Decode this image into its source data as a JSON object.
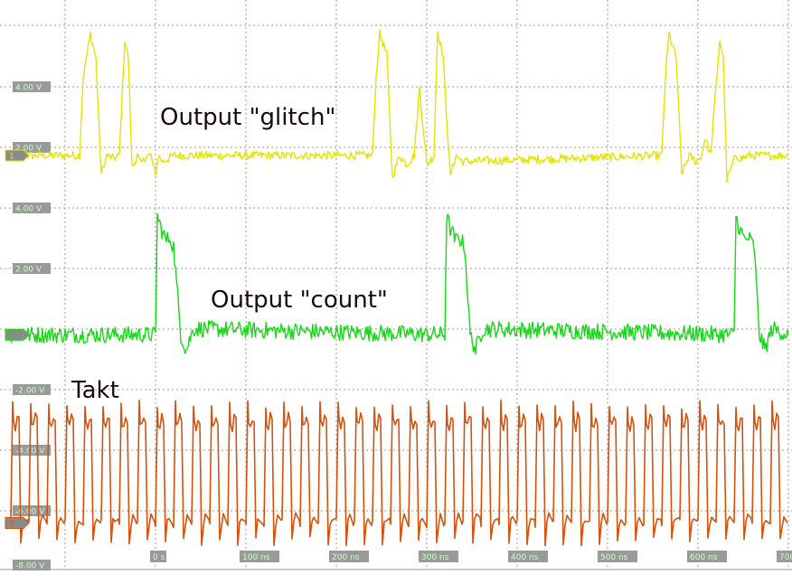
{
  "chart_data": {
    "type": "line",
    "title": "",
    "xlabel": "",
    "ylabel": "",
    "grid": true,
    "xlim": [
      -1.6,
      7.0
    ],
    "x_ticks": [
      "0 s",
      "100 ns",
      "200 ns",
      "300 ns",
      "400 ns",
      "500 ns",
      "600 ns",
      "700"
    ],
    "y_ticks": [
      "4.00 V",
      "2.00 V",
      "4.00 V",
      "2.00 V",
      "-2.00 V",
      "-4.00 V",
      "-6.00 V",
      "-8.00 V"
    ],
    "channel_markers": [
      "1",
      "2",
      "3"
    ],
    "annotations": [
      "Output \"glitch\"",
      "Output \"count\"",
      "Takt"
    ],
    "colors": {
      "glitch": "#e4e400",
      "count": "#16d816",
      "takt": "#d4520c",
      "grid": "#9a9a9a",
      "label_bg": "#9a9a9a",
      "label_text": "#c8ffc8"
    },
    "series": [
      {
        "key": "glitch",
        "baseline_v": 0.0,
        "points_x": [
          -1.6,
          -0.84,
          -0.8,
          -0.72,
          -0.66,
          -0.6,
          -0.54,
          -0.46,
          -0.4,
          -0.34,
          -0.3,
          -0.26,
          -0.2,
          -0.16,
          -0.1,
          -0.05,
          0.0,
          0.03,
          0.08,
          0.2,
          2.4,
          2.44,
          2.48,
          2.56,
          2.62,
          2.7,
          2.78,
          2.86,
          2.92,
          3.0,
          3.08,
          3.12,
          3.18,
          3.26,
          3.32,
          3.4,
          5.6,
          5.64,
          5.68,
          5.76,
          5.82,
          5.9,
          5.98,
          6.04,
          6.08,
          6.14,
          6.24,
          6.28,
          6.32,
          6.42,
          6.48,
          6.56,
          7.0
        ],
        "points_v": [
          0.0,
          0.0,
          2.6,
          4.0,
          3.2,
          -0.6,
          0.0,
          -0.1,
          0.0,
          3.8,
          3.2,
          -0.4,
          0.0,
          -0.3,
          0.0,
          0.0,
          -0.7,
          0.0,
          -0.2,
          0.0,
          0.0,
          2.6,
          4.0,
          3.3,
          -0.7,
          0.0,
          -0.3,
          0.0,
          2.2,
          -0.3,
          0.0,
          4.1,
          3.3,
          -0.7,
          0.0,
          -0.2,
          0.0,
          2.6,
          4.0,
          3.2,
          -0.6,
          0.0,
          -0.2,
          0.0,
          0.6,
          0.0,
          3.8,
          3.2,
          -0.8,
          0.0,
          -0.1,
          0.0,
          0.0
        ]
      },
      {
        "key": "count",
        "baseline_v": -5.9,
        "points_x": [
          -1.6,
          0.0,
          0.02,
          0.06,
          0.12,
          0.16,
          0.2,
          0.28,
          0.34,
          0.42,
          3.2,
          3.22,
          3.26,
          3.32,
          3.36,
          3.42,
          3.48,
          3.54,
          3.62,
          6.4,
          6.42,
          6.46,
          6.52,
          6.56,
          6.62,
          6.68,
          6.74,
          6.82,
          7.0
        ],
        "points_v": [
          -5.9,
          -5.9,
          -2.0,
          -2.4,
          -2.8,
          -2.7,
          -3.0,
          -5.9,
          -6.4,
          -5.7,
          -5.9,
          -2.0,
          -2.4,
          -2.8,
          -2.7,
          -3.0,
          -5.9,
          -6.4,
          -5.7,
          -5.9,
          -2.0,
          -2.4,
          -2.8,
          -2.7,
          -3.0,
          -5.9,
          -6.4,
          -5.7,
          -5.9
        ]
      },
      {
        "key": "takt",
        "low_v": -12.1,
        "high_v": -8.8,
        "period": 0.2,
        "start_x": -1.6,
        "end_x": 7.0
      }
    ]
  }
}
